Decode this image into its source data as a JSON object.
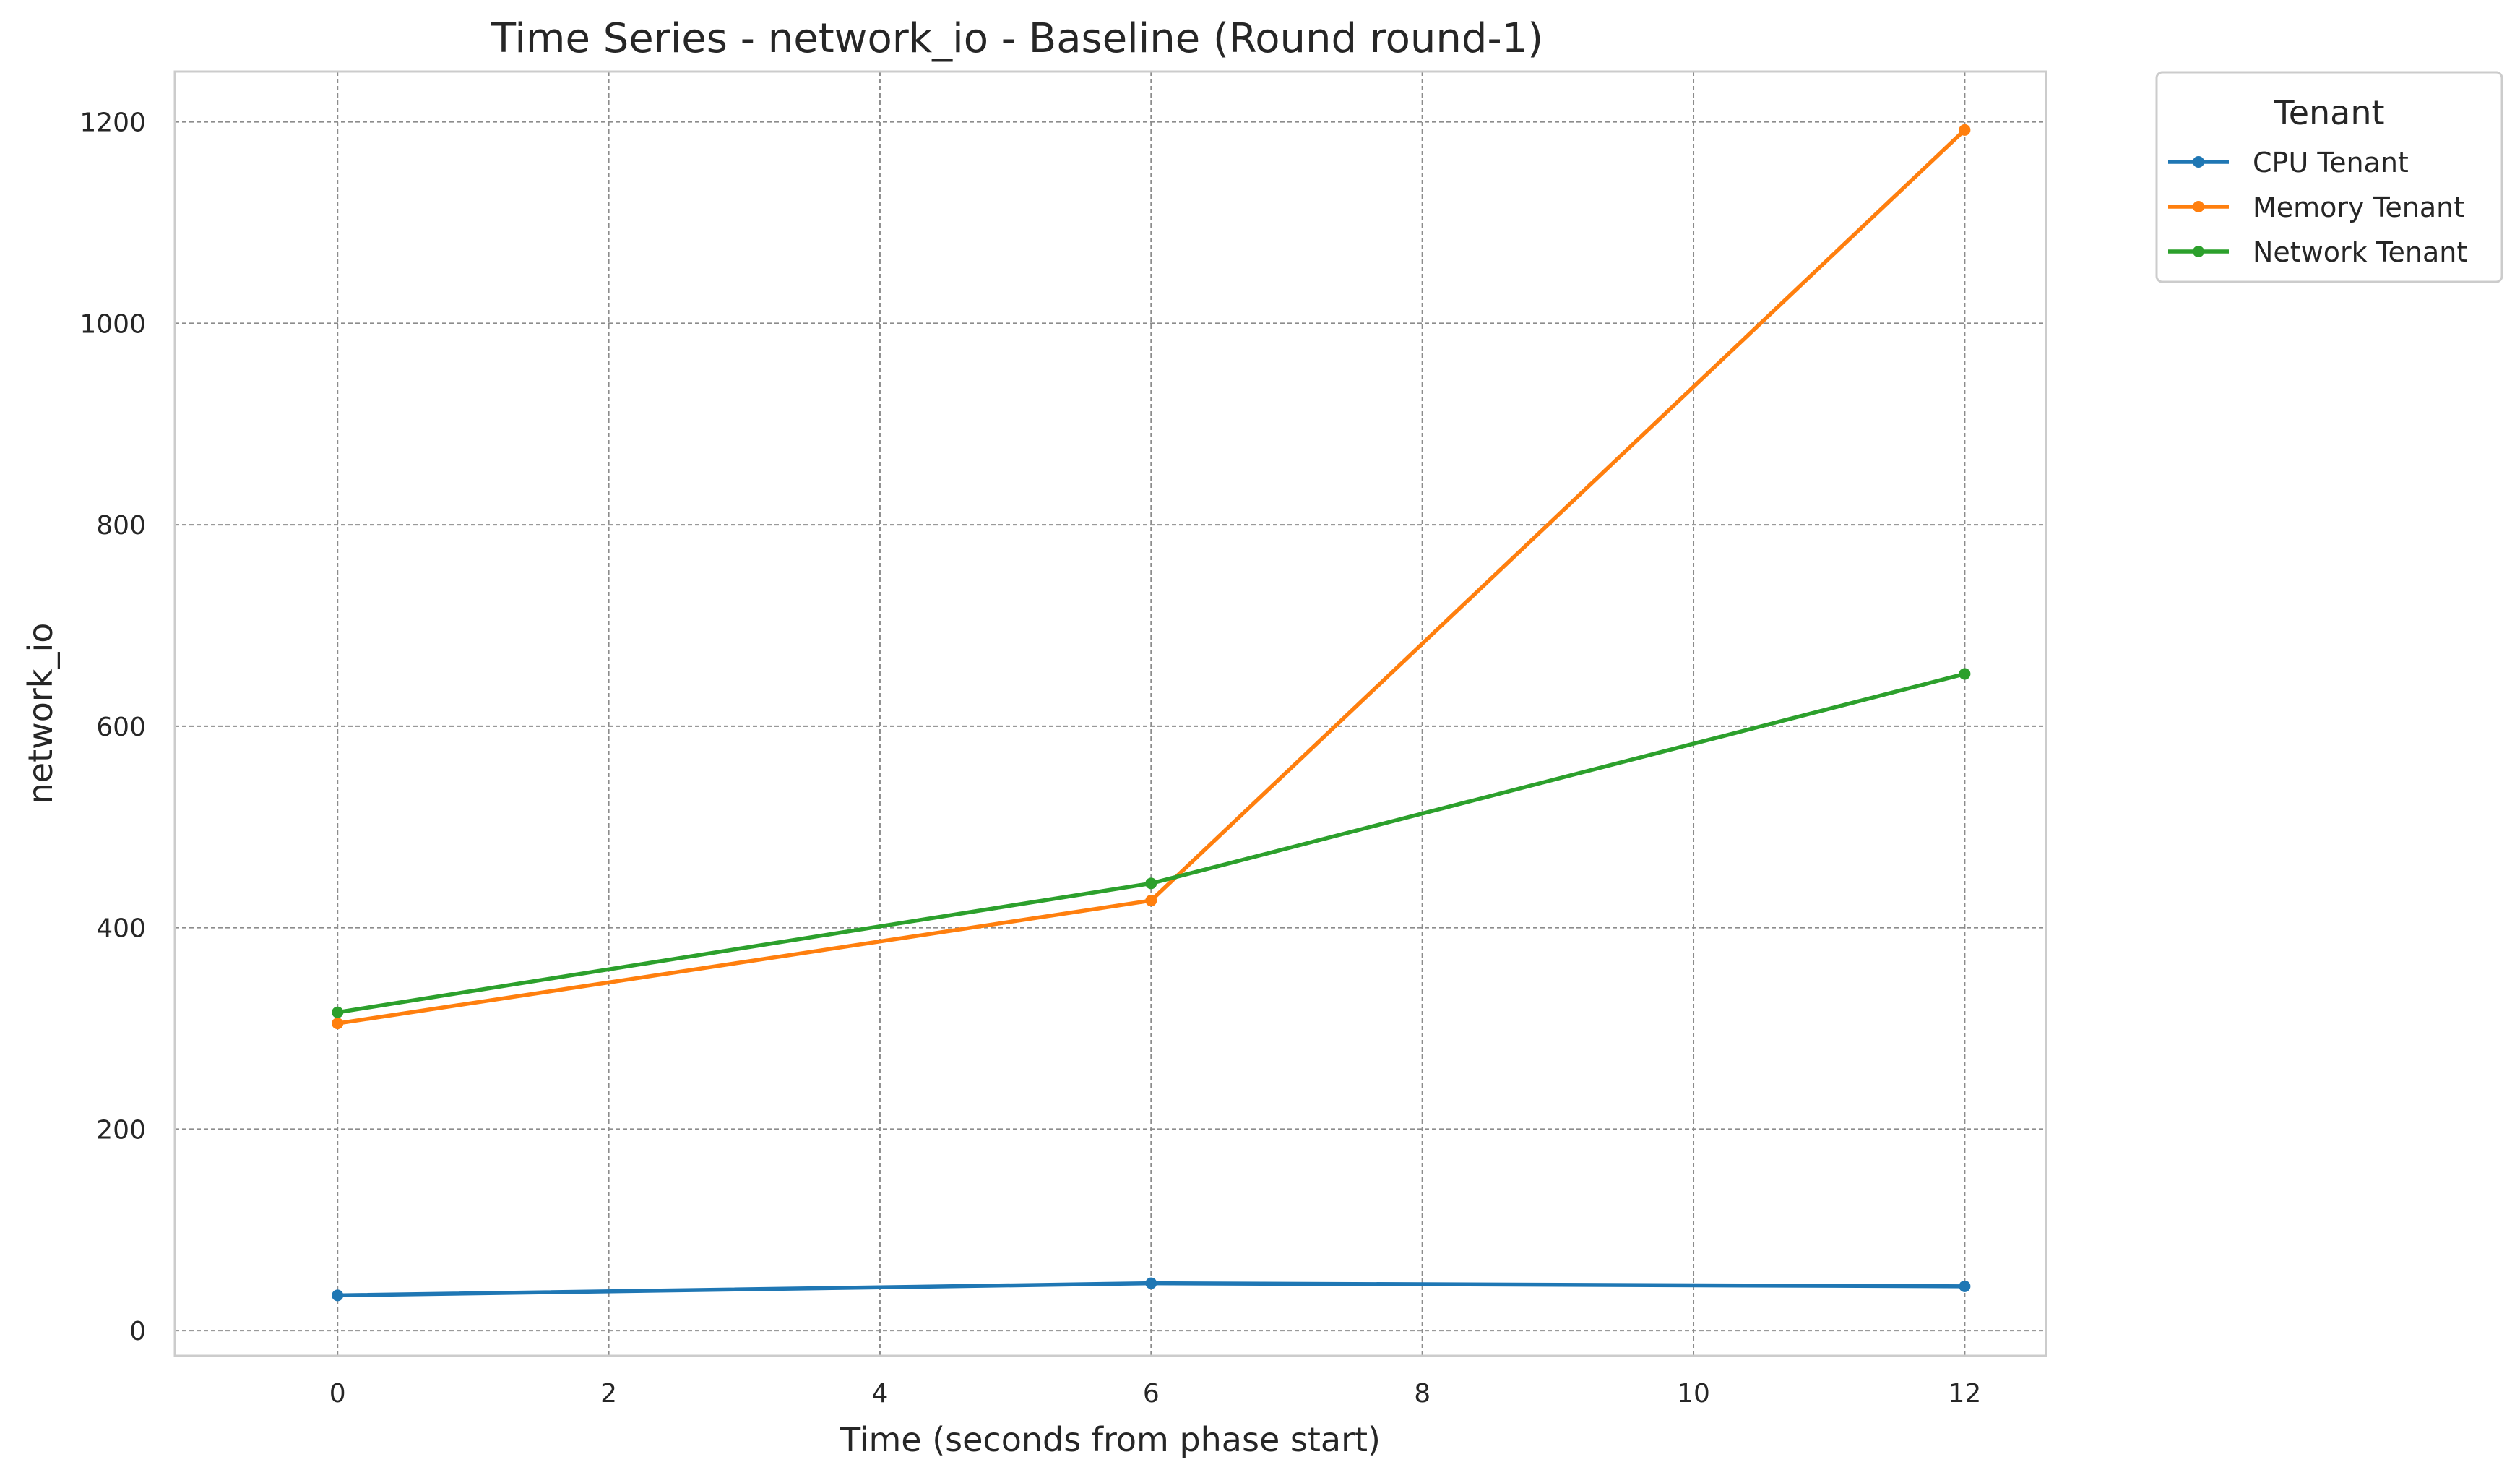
{
  "chart_data": {
    "type": "line",
    "title": "Time Series - network_io - Baseline (Round round-1)",
    "xlabel": "Time (seconds from phase start)",
    "ylabel": "network_io",
    "xlim": [
      -1.2,
      12.6
    ],
    "ylim": [
      -25,
      1250
    ],
    "xticks": [
      0,
      2,
      4,
      6,
      8,
      10,
      12
    ],
    "yticks": [
      0,
      200,
      400,
      600,
      800,
      1000,
      1200
    ],
    "grid": true,
    "legend": {
      "title": "Tenant",
      "placement": "outside top-right"
    },
    "x": [
      0,
      6,
      12
    ],
    "series": [
      {
        "name": "CPU Tenant",
        "color": "#1f77b4",
        "values": [
          35,
          47,
          44
        ]
      },
      {
        "name": "Memory Tenant",
        "color": "#ff7f0e",
        "values": [
          305,
          427,
          1192
        ]
      },
      {
        "name": "Network Tenant",
        "color": "#2ca02c",
        "values": [
          316,
          444,
          652
        ]
      }
    ]
  }
}
